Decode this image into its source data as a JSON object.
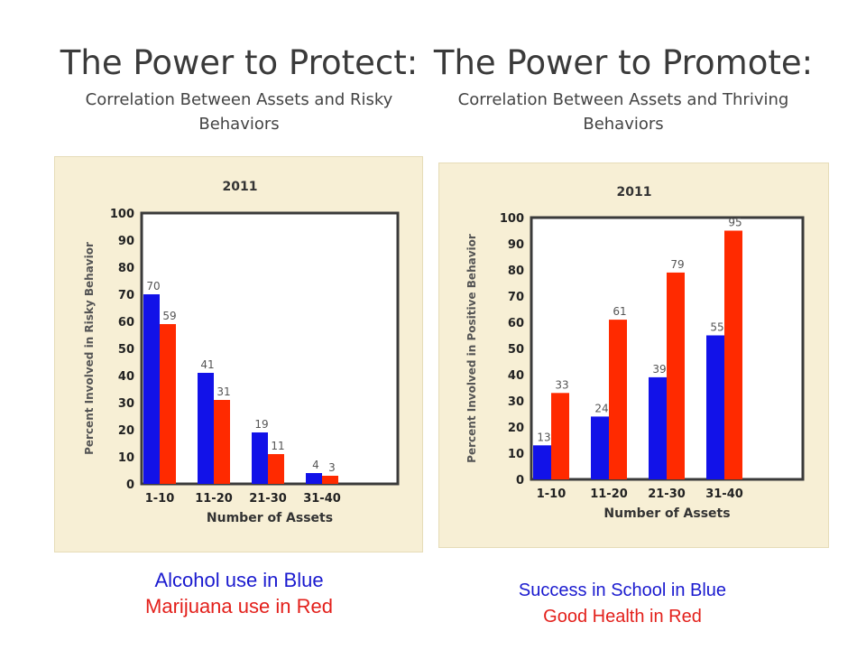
{
  "left": {
    "title": "The Power to Protect:",
    "subtitle": "Correlation Between Assets and Risky Behaviors",
    "legend_blue": "Alcohol use in Blue",
    "legend_red": "Marijuana use in Red"
  },
  "right": {
    "title": "The Power to Promote:",
    "subtitle": "Correlation Between Assets and Thriving Behaviors",
    "legend_blue": "Success in School in Blue",
    "legend_red": "Good Health in Red"
  },
  "colors": {
    "blue": "#1212e8",
    "red": "#ff2a00",
    "panel": "#f7efd5",
    "frame": "#3a3a3a"
  },
  "chart_data": [
    {
      "type": "bar",
      "title": "2011",
      "xlabel": "Number of Assets",
      "ylabel": "Percent Involved in Risky Behavior",
      "categories": [
        "1-10",
        "11-20",
        "21-30",
        "31-40"
      ],
      "series": [
        {
          "color": "blue",
          "values": [
            70,
            41,
            19,
            4
          ]
        },
        {
          "color": "red",
          "values": [
            59,
            31,
            11,
            3
          ]
        }
      ],
      "ylim": [
        0,
        100
      ],
      "yticks": [
        0,
        10,
        20,
        30,
        40,
        50,
        60,
        70,
        80,
        90,
        100
      ],
      "grid": false
    },
    {
      "type": "bar",
      "title": "2011",
      "xlabel": "Number of Assets",
      "ylabel": "Percent Involved in Positive Behavior",
      "categories": [
        "1-10",
        "11-20",
        "21-30",
        "31-40"
      ],
      "series": [
        {
          "color": "blue",
          "values": [
            13,
            24,
            39,
            55
          ]
        },
        {
          "color": "red",
          "values": [
            33,
            61,
            79,
            95
          ]
        }
      ],
      "ylim": [
        0,
        100
      ],
      "yticks": [
        0,
        10,
        20,
        30,
        40,
        50,
        60,
        70,
        80,
        90,
        100
      ],
      "grid": false
    }
  ]
}
